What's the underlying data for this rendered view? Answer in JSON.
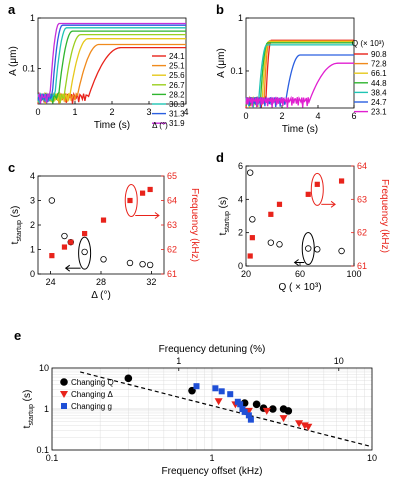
{
  "chart_data": [
    {
      "panel": "a",
      "type": "line",
      "xlabel_main": "Time (s)",
      "ylabel_main": "A (μm)",
      "xlim": [
        0,
        4
      ],
      "ylim": [
        0.02,
        1
      ],
      "log_y": true,
      "xticks": [
        "0",
        "1",
        "2",
        "3",
        "4"
      ],
      "yticks": [
        "0.1",
        "1"
      ],
      "legend_title": "Δ (°)",
      "series": [
        {
          "name": "24.1",
          "color": "#e8231b",
          "onset": 1.35,
          "rise": 0.9,
          "plateau": 0.26
        },
        {
          "name": "25.1",
          "color": "#f08a1c",
          "onset": 1.05,
          "rise": 0.6,
          "plateau": 0.3
        },
        {
          "name": "25.6",
          "color": "#e6c81c",
          "onset": 0.85,
          "rise": 0.5,
          "plateau": 0.39
        },
        {
          "name": "26.7",
          "color": "#9bcf1f",
          "onset": 0.7,
          "rise": 0.45,
          "plateau": 0.47
        },
        {
          "name": "28.2",
          "color": "#2fb52f",
          "onset": 0.55,
          "rise": 0.38,
          "plateau": 0.55
        },
        {
          "name": "30.3",
          "color": "#1fc4b4",
          "onset": 0.45,
          "rise": 0.32,
          "plateau": 0.64
        },
        {
          "name": "31.3",
          "color": "#2a5fe0",
          "onset": 0.38,
          "rise": 0.28,
          "plateau": 0.72
        },
        {
          "name": "31.9",
          "color": "#c52fd9",
          "onset": 0.32,
          "rise": 0.25,
          "plateau": 0.78
        }
      ]
    },
    {
      "panel": "b",
      "type": "line",
      "xlabel_main": "Time (s)",
      "ylabel_main": "A (μm)",
      "xlim": [
        0,
        6
      ],
      "ylim": [
        0.02,
        1
      ],
      "log_y": true,
      "xticks": [
        "0",
        "2",
        "4",
        "6"
      ],
      "yticks": [
        "0.1",
        "1"
      ],
      "legend_title": "Q  (× 10³)",
      "series": [
        {
          "name": "90.8",
          "color": "#e8231b",
          "onset": 1.1,
          "rise": 0.3,
          "plateau": 0.38
        },
        {
          "name": "72.8",
          "color": "#f08a1c",
          "onset": 1.0,
          "rise": 0.3,
          "plateau": 0.37
        },
        {
          "name": "66.1",
          "color": "#e6c81c",
          "onset": 0.9,
          "rise": 0.35,
          "plateau": 0.36
        },
        {
          "name": "44.8",
          "color": "#2fb52f",
          "onset": 0.8,
          "rise": 0.4,
          "plateau": 0.34
        },
        {
          "name": "38.4",
          "color": "#1fc4b4",
          "onset": 0.7,
          "rise": 0.45,
          "plateau": 0.31
        },
        {
          "name": "24.7",
          "color": "#2a5fe0",
          "onset": 2.2,
          "rise": 0.8,
          "plateau": 0.2
        },
        {
          "name": "23.1",
          "color": "#e01fd0",
          "onset": 3.5,
          "rise": 1.6,
          "plateau": 0.14
        }
      ]
    },
    {
      "panel": "c",
      "type": "scatter",
      "xlabel_main": "Δ (°)",
      "ylabel_main": "t",
      "ylabel_sub": "startup",
      "ylabel_unit": "(s)",
      "ylabel_right": "Frequency (kHz)",
      "xlim": [
        23,
        33
      ],
      "ylim": [
        0,
        4
      ],
      "y2lim": [
        61,
        65
      ],
      "xticks": [
        "24",
        "28",
        "32"
      ],
      "yticks": [
        "0",
        "1",
        "2",
        "3",
        "4"
      ],
      "y2ticks": [
        "61",
        "62",
        "63",
        "64",
        "65"
      ],
      "open": {
        "x": [
          24.1,
          25.1,
          25.6,
          26.7,
          28.2,
          30.3,
          31.3,
          31.9
        ],
        "y": [
          3.0,
          1.55,
          1.3,
          0.9,
          0.6,
          0.45,
          0.4,
          0.37
        ]
      },
      "red": {
        "x": [
          24.1,
          25.1,
          25.6,
          26.7,
          28.2,
          30.3,
          31.3,
          31.9
        ],
        "y": [
          61.75,
          62.1,
          62.3,
          62.65,
          63.2,
          64.0,
          64.3,
          64.45
        ]
      }
    },
    {
      "panel": "d",
      "type": "scatter",
      "xlabel_main": "Q  ( × 10³)",
      "ylabel_main": "t",
      "ylabel_sub": "startup",
      "ylabel_unit": "(s)",
      "ylabel_right": "Frequency (kHz)",
      "xlim": [
        20,
        100
      ],
      "ylim": [
        0,
        6
      ],
      "y2lim": [
        61,
        64
      ],
      "xticks": [
        "20",
        "60",
        "100"
      ],
      "yticks": [
        "0",
        "2",
        "4",
        "6"
      ],
      "y2ticks": [
        "61",
        "62",
        "63",
        "64"
      ],
      "open": {
        "x": [
          23.1,
          24.7,
          38.4,
          44.8,
          66.1,
          72.8,
          90.8
        ],
        "y": [
          5.6,
          2.8,
          1.4,
          1.3,
          1.05,
          1.0,
          0.9
        ]
      },
      "red": {
        "x": [
          23.1,
          24.7,
          38.4,
          44.8,
          66.1,
          72.8,
          90.8
        ],
        "y": [
          61.3,
          61.85,
          62.55,
          62.85,
          63.15,
          63.45,
          63.55
        ]
      }
    },
    {
      "panel": "e",
      "type": "scatter",
      "xlabel_main": "Frequency offset (kHz)",
      "xlabel_top": "Frequency detuning (%)",
      "ylabel_main": "t",
      "ylabel_sub": "startup",
      "ylabel_unit": "(s)",
      "log_x": true,
      "log_y": true,
      "xlim": [
        0.1,
        10
      ],
      "ylim": [
        0.1,
        10
      ],
      "xticks": [
        "0.1",
        "1",
        "10"
      ],
      "xticks_top": [
        "1",
        "10"
      ],
      "yticks": [
        "0.1",
        "1",
        "10"
      ],
      "legend": [
        "Changing Q",
        "Changing Δ",
        "Changing g"
      ],
      "series": [
        {
          "name": "Changing Q",
          "marker": "circle",
          "color": "#000000",
          "x": [
            0.3,
            0.75,
            1.6,
            1.9,
            2.1,
            2.4,
            2.8,
            3.0
          ],
          "y": [
            5.6,
            2.8,
            1.4,
            1.3,
            1.05,
            1.0,
            1.0,
            0.9
          ]
        },
        {
          "name": "Changing Δ",
          "marker": "triangle",
          "color": "#e8231b",
          "x": [
            1.1,
            1.4,
            1.7,
            2.2,
            2.8,
            3.5,
            3.8,
            4.0
          ],
          "y": [
            1.55,
            1.3,
            0.9,
            0.9,
            0.6,
            0.45,
            0.4,
            0.37
          ]
        },
        {
          "name": "Changing g",
          "marker": "square",
          "color": "#1f4fd6",
          "x": [
            0.8,
            1.05,
            1.15,
            1.3,
            1.45,
            1.5,
            1.55,
            1.6,
            1.7,
            1.75
          ],
          "y": [
            3.6,
            3.2,
            2.7,
            2.3,
            1.5,
            1.3,
            1.0,
            0.85,
            0.7,
            0.55
          ]
        }
      ],
      "fit": {
        "x": [
          0.15,
          10
        ],
        "y": [
          8.0,
          0.12
        ]
      }
    }
  ]
}
